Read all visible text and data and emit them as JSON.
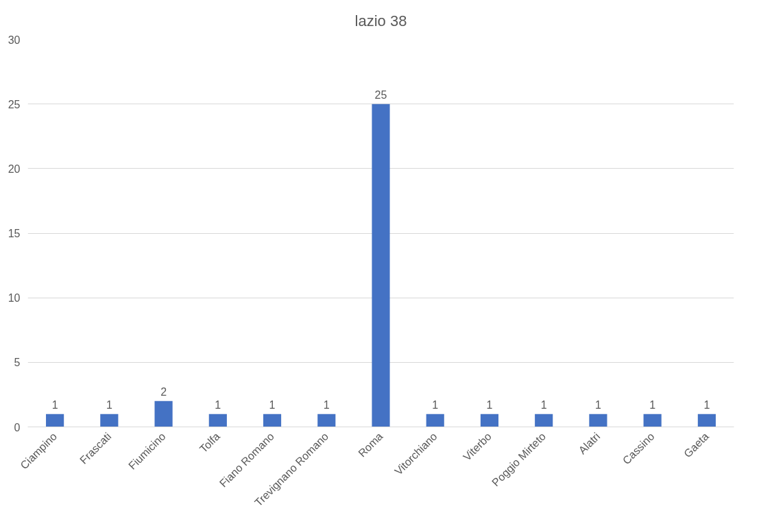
{
  "chart_data": {
    "type": "bar",
    "title": "lazio 38",
    "categories": [
      "Ciampino",
      "Frascati",
      "Fiumicino",
      "Tolfa",
      "Fiano Romano",
      "Trevignano Romano",
      "Roma",
      "Vitorchiano",
      "Viterbo",
      "Poggio Mirteto",
      "Alatri",
      "Cassino",
      "Gaeta"
    ],
    "values": [
      1,
      1,
      2,
      1,
      1,
      1,
      25,
      1,
      1,
      1,
      1,
      1,
      1
    ],
    "color": "#4472c4",
    "ylim": [
      0,
      30
    ],
    "yticks": [
      0,
      5,
      10,
      15,
      20,
      25,
      30
    ],
    "grid": "y",
    "data_labels": true
  }
}
